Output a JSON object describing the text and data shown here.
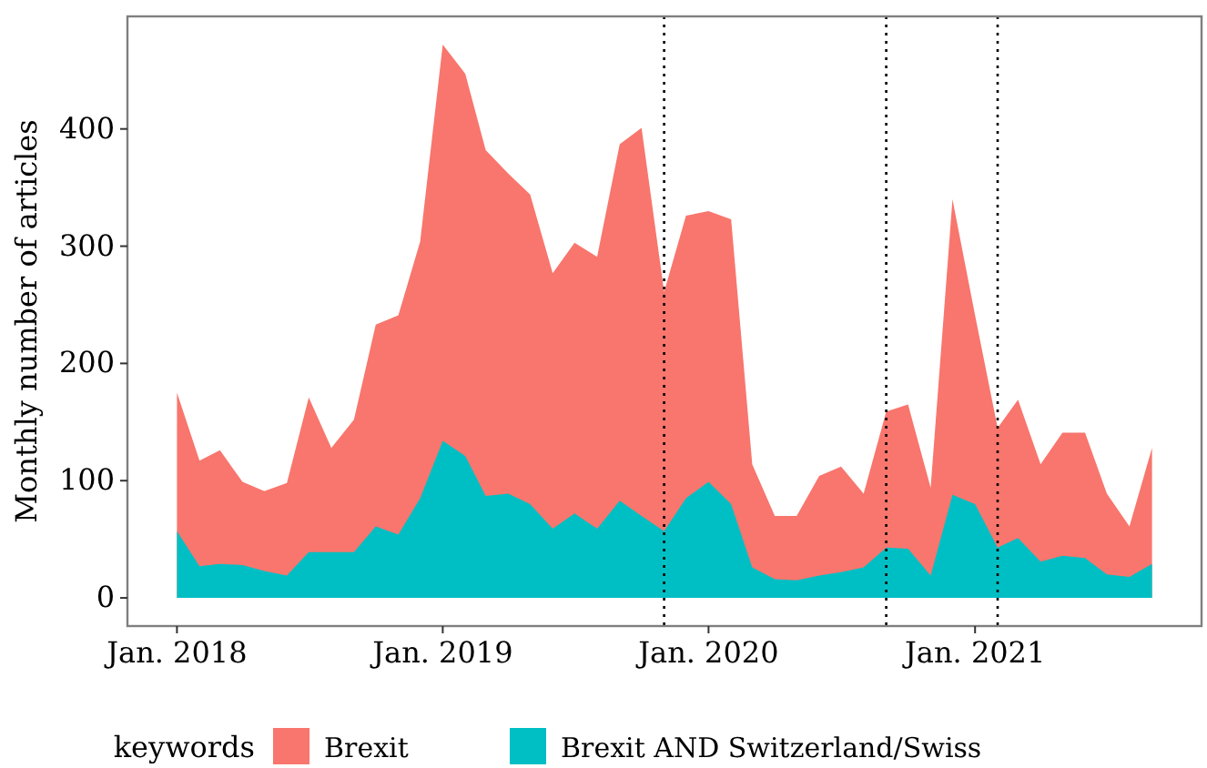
{
  "chart_data": {
    "type": "area",
    "ylabel": "Monthly number of articles",
    "legend_title": "keywords",
    "legend": "bottom",
    "grid": false,
    "x": [
      "2018-01",
      "2018-02",
      "2018-03",
      "2018-04",
      "2018-05",
      "2018-06",
      "2018-07",
      "2018-08",
      "2018-09",
      "2018-10",
      "2018-11",
      "2018-12",
      "2019-01",
      "2019-02",
      "2019-03",
      "2019-04",
      "2019-05",
      "2019-06",
      "2019-07",
      "2019-08",
      "2019-09",
      "2019-10",
      "2019-11",
      "2019-12",
      "2020-01",
      "2020-02",
      "2020-03",
      "2020-04",
      "2020-05",
      "2020-06",
      "2020-07",
      "2020-08",
      "2020-09",
      "2020-10",
      "2020-11",
      "2020-12",
      "2021-01",
      "2021-02",
      "2021-03",
      "2021-04",
      "2021-05",
      "2021-06",
      "2021-07",
      "2021-08",
      "2021-09"
    ],
    "series": [
      {
        "name": "Brexit",
        "color": "#f8766d",
        "values": [
          175,
          117,
          126,
          99,
          91,
          98,
          171,
          128,
          152,
          233,
          241,
          304,
          472,
          447,
          382,
          362,
          344,
          277,
          303,
          291,
          387,
          401,
          261,
          326,
          330,
          323,
          114,
          70,
          70,
          104,
          112,
          89,
          159,
          165,
          94,
          340,
          241,
          145,
          169,
          114,
          141,
          141,
          89,
          61,
          128
        ]
      },
      {
        "name": "Brexit AND Switzerland/Swiss",
        "color": "#00bfc4",
        "values": [
          57,
          27,
          29,
          28,
          23,
          19,
          39,
          39,
          39,
          61,
          54,
          85,
          134,
          121,
          87,
          89,
          80,
          59,
          72,
          59,
          83,
          70,
          57,
          85,
          99,
          80,
          26,
          16,
          15,
          19,
          22,
          26,
          43,
          42,
          19,
          88,
          80,
          43,
          51,
          31,
          36,
          34,
          20,
          18,
          29
        ]
      }
    ],
    "xlim": [
      "2017-10-25",
      "2021-11-08"
    ],
    "xticks": [
      {
        "value": "2018-01",
        "label": "Jan. 2018"
      },
      {
        "value": "2019-01",
        "label": "Jan. 2019"
      },
      {
        "value": "2020-01",
        "label": "Jan. 2020"
      },
      {
        "value": "2021-01",
        "label": "Jan. 2021"
      }
    ],
    "ylim": [
      -24,
      496
    ],
    "yticks": [
      0,
      100,
      200,
      300,
      400
    ],
    "ref_lines": [
      {
        "axis": "x",
        "value": "2019-11",
        "line_style": "dotted",
        "color": "#000000"
      },
      {
        "axis": "x",
        "value": "2020-09",
        "line_style": "dotted",
        "color": "#000000"
      },
      {
        "axis": "x",
        "value": "2021-02",
        "line_style": "dotted",
        "color": "#000000"
      }
    ]
  }
}
